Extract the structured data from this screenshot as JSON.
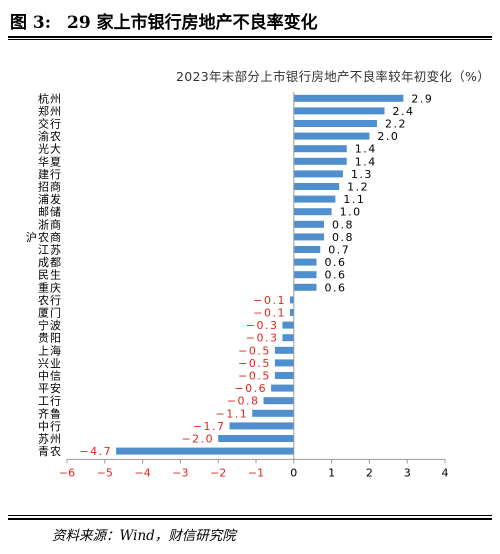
{
  "figure": {
    "number": "图 3:",
    "heading": "29 家上市银行房地产不良率变化",
    "source": "资料来源：Wind，财信研究院"
  },
  "colors": {
    "positive_bar": "#4f8fcd",
    "negative_label": "#e0261c",
    "positive_label": "#000000",
    "axis": "#999999"
  },
  "chart_data": {
    "type": "bar",
    "orientation": "horizontal",
    "title": "2023年末部分上市银行房地产不良率较年初变化（%）",
    "categories": [
      "杭州",
      "郑州",
      "交行",
      "渝农",
      "光大",
      "华夏",
      "建行",
      "招商",
      "浦发",
      "邮储",
      "浙商",
      "沪农商",
      "江苏",
      "成都",
      "民生",
      "重庆",
      "农行",
      "厦门",
      "宁波",
      "贵阳",
      "上海",
      "兴业",
      "中信",
      "平安",
      "工行",
      "齐鲁",
      "中行",
      "苏州",
      "青农"
    ],
    "values": [
      2.9,
      2.4,
      2.2,
      2.0,
      1.4,
      1.4,
      1.3,
      1.2,
      1.1,
      1.0,
      0.8,
      0.8,
      0.7,
      0.6,
      0.6,
      0.6,
      -0.1,
      -0.1,
      -0.3,
      -0.3,
      -0.5,
      -0.5,
      -0.5,
      -0.6,
      -0.8,
      -1.1,
      -1.7,
      -2.0,
      -4.7
    ],
    "value_labels": [
      "2.9",
      "2.4",
      "2.2",
      "2.0",
      "1.4",
      "1.4",
      "1.3",
      "1.2",
      "1.1",
      "1.0",
      "0.8",
      "0.8",
      "0.7",
      "0.6",
      "0.6",
      "0.6",
      "−0.1",
      "−0.1",
      "−0.3",
      "−0.3",
      "−0.5",
      "−0.5",
      "−0.5",
      "−0.6",
      "−0.8",
      "−1.1",
      "−1.7",
      "−2.0",
      "−4.7"
    ],
    "xlim": [
      -6,
      4
    ],
    "xticks": [
      -6,
      -5,
      -4,
      -3,
      -2,
      -1,
      0,
      1,
      2,
      3,
      4
    ],
    "xtick_labels": [
      "−6",
      "−5",
      "−4",
      "−3",
      "−2",
      "−1",
      "0",
      "1",
      "2",
      "3",
      "4"
    ],
    "grid": false,
    "legend": "none"
  }
}
